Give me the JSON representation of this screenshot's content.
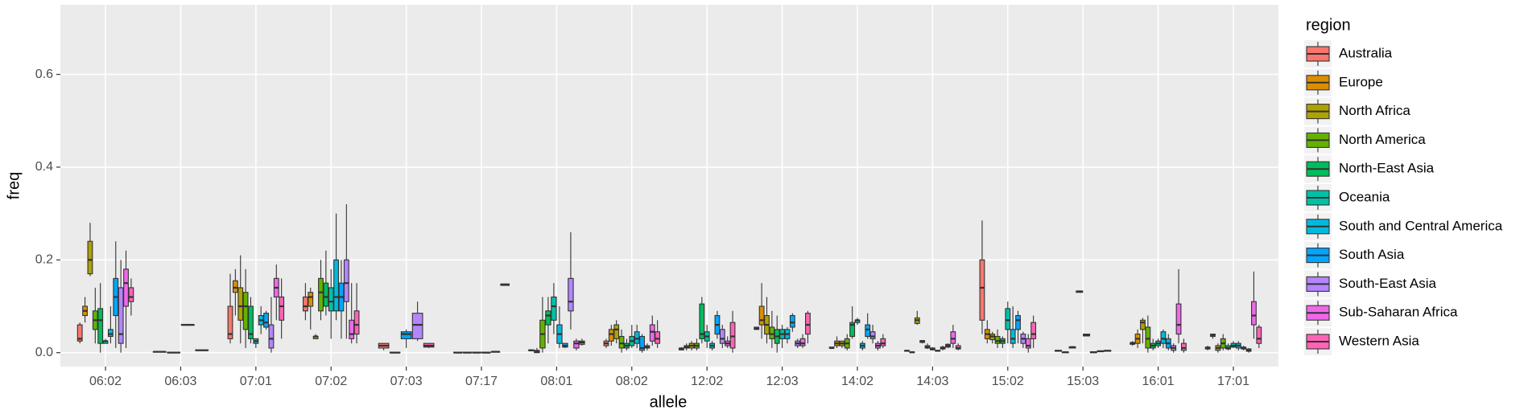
{
  "chart_data": {
    "type": "boxplot",
    "x_label": "allele",
    "y_label": "freq",
    "legend_title": "region",
    "legend_position": "right",
    "grid": true,
    "categories": [
      "06:02",
      "06:03",
      "07:01",
      "07:02",
      "07:03",
      "07:17",
      "08:01",
      "08:02",
      "12:02",
      "12:03",
      "14:02",
      "14:03",
      "15:02",
      "15:03",
      "16:01",
      "17:01"
    ],
    "ylim": [
      -0.03,
      0.75
    ],
    "yticks": [
      {
        "value": 0,
        "label": "0.0"
      },
      0.2,
      0.4,
      0.6
    ],
    "series": [
      {
        "name": "Australia",
        "color": "#F8766D",
        "values": [
          [
            0.02,
            0.025,
            0.03,
            0.06,
            0.065
          ],
          [
            0.001,
            0.001,
            0.002,
            0.002,
            0.003
          ],
          [
            0.02,
            0.03,
            0.04,
            0.1,
            0.17
          ],
          [
            0.07,
            0.09,
            0.1,
            0.12,
            0.15
          ],
          [
            0.005,
            0.01,
            0.015,
            0.02,
            0.02
          ],
          [
            0,
            0,
            0,
            0.001,
            0.001
          ],
          [
            0.003,
            0.004,
            0.005,
            0.006,
            0.007
          ],
          [
            0.01,
            0.015,
            0.02,
            0.025,
            0.03
          ],
          [
            0.005,
            0.006,
            0.008,
            0.01,
            0.012
          ],
          [
            0.05,
            0.05,
            0.052,
            0.055,
            0.055
          ],
          [
            0.008,
            0.01,
            0.01,
            0.012,
            0.012
          ],
          [
            0.002,
            0.003,
            0.004,
            0.005,
            0.006
          ],
          [
            0.04,
            0.07,
            0.14,
            0.2,
            0.285
          ],
          [
            0.002,
            0.003,
            0.004,
            0.005,
            0.005
          ],
          [
            0.015,
            0.018,
            0.02,
            0.022,
            0.025
          ],
          [
            0.005,
            0.008,
            0.01,
            0.012,
            0.015
          ]
        ]
      },
      {
        "name": "Europe",
        "color": "#DB8E00",
        "values": [
          [
            0.065,
            0.08,
            0.09,
            0.1,
            0.12
          ],
          null,
          [
            0.08,
            0.13,
            0.14,
            0.155,
            0.18
          ],
          [
            0.05,
            0.1,
            0.12,
            0.13,
            0.14
          ],
          null,
          [
            0,
            0,
            0,
            0.001,
            0.001
          ],
          [
            0,
            0,
            0.002,
            0.005,
            0.01
          ],
          [
            0.015,
            0.025,
            0.04,
            0.05,
            0.06
          ],
          [
            0.005,
            0.01,
            0.012,
            0.015,
            0.02
          ],
          [
            0.03,
            0.06,
            0.07,
            0.1,
            0.15
          ],
          [
            0.01,
            0.015,
            0.02,
            0.025,
            0.035
          ],
          [
            0,
            0,
            0.001,
            0.002,
            0.003
          ],
          [
            0.02,
            0.03,
            0.04,
            0.05,
            0.07
          ],
          [
            0,
            0,
            0.001,
            0.001,
            0.002
          ],
          [
            0.01,
            0.02,
            0.03,
            0.04,
            0.05
          ],
          [
            0.03,
            0.035,
            0.038,
            0.04,
            0.04
          ]
        ]
      },
      {
        "name": "North Africa",
        "color": "#AEA200",
        "values": [
          [
            0.165,
            0.17,
            0.2,
            0.24,
            0.28
          ],
          [
            0,
            0,
            0,
            0.001,
            0.001
          ],
          [
            0.02,
            0.07,
            0.1,
            0.14,
            0.21
          ],
          [
            0.03,
            0.03,
            0.035,
            0.035,
            0.04
          ],
          null,
          [
            0,
            0,
            0,
            0.001,
            0.001
          ],
          null,
          [
            0.02,
            0.03,
            0.05,
            0.06,
            0.07
          ],
          [
            0.005,
            0.01,
            0.015,
            0.02,
            0.025
          ],
          [
            0.02,
            0.04,
            0.06,
            0.08,
            0.12
          ],
          [
            0.01,
            0.015,
            0.02,
            0.025,
            0.025
          ],
          [
            0.06,
            0.063,
            0.07,
            0.075,
            0.09
          ],
          [
            0.02,
            0.028,
            0.035,
            0.04,
            0.045
          ],
          [
            0.01,
            0.01,
            0.012,
            0.012,
            0.014
          ],
          [
            0.02,
            0.05,
            0.065,
            0.07,
            0.075
          ],
          [
            0,
            0.005,
            0.01,
            0.015,
            0.02
          ]
        ]
      },
      {
        "name": "North America",
        "color": "#64B200",
        "values": [
          [
            0.02,
            0.05,
            0.07,
            0.09,
            0.14
          ],
          null,
          [
            0.01,
            0.05,
            0.1,
            0.13,
            0.18
          ],
          [
            0.07,
            0.09,
            0.13,
            0.16,
            0.2
          ],
          [
            0,
            0,
            0,
            0.001,
            0.001
          ],
          [
            0,
            0,
            0,
            0.001,
            0.001
          ],
          [
            0,
            0.01,
            0.04,
            0.07,
            0.12
          ],
          [
            0,
            0.01,
            0.02,
            0.035,
            0.05
          ],
          [
            0.005,
            0.01,
            0.015,
            0.02,
            0.03
          ],
          [
            0.01,
            0.03,
            0.04,
            0.055,
            0.09
          ],
          [
            0.005,
            0.01,
            0.02,
            0.03,
            0.04
          ],
          [
            0.02,
            0.022,
            0.025,
            0.026,
            0.027
          ],
          [
            0.01,
            0.02,
            0.025,
            0.035,
            0.05
          ],
          [
            0.13,
            0.13,
            0.132,
            0.133,
            0.134
          ],
          [
            0,
            0.01,
            0.03,
            0.055,
            0.08
          ],
          [
            0.005,
            0.01,
            0.02,
            0.03,
            0.04
          ]
        ]
      },
      {
        "name": "North-East Asia",
        "color": "#00BD5C",
        "values": [
          [
            0,
            0.02,
            0.07,
            0.095,
            0.15
          ],
          null,
          [
            0.02,
            0.03,
            0.04,
            0.1,
            0.12
          ],
          [
            0.08,
            0.1,
            0.12,
            0.15,
            0.22
          ],
          null,
          [
            0.001,
            0.001,
            0.002,
            0.002,
            0.003
          ],
          [
            0.02,
            0.06,
            0.08,
            0.09,
            0.12
          ],
          [
            0.005,
            0.01,
            0.015,
            0.02,
            0.03
          ],
          [
            0.02,
            0.03,
            0.04,
            0.105,
            0.12
          ],
          [
            0,
            0.02,
            0.035,
            0.05,
            0.08
          ],
          [
            0.03,
            0.035,
            0.06,
            0.065,
            0.1
          ],
          [
            0.008,
            0.01,
            0.012,
            0.015,
            0.02
          ],
          [
            0.01,
            0.02,
            0.025,
            0.03,
            0.035
          ],
          [
            0.035,
            0.036,
            0.038,
            0.04,
            0.04
          ],
          [
            0.005,
            0.01,
            0.015,
            0.02,
            0.03
          ],
          [
            0.005,
            0.008,
            0.01,
            0.015,
            0.02
          ]
        ]
      },
      {
        "name": "Oceania",
        "color": "#00C1A7",
        "values": [
          [
            0.02,
            0.02,
            0.025,
            0.025,
            0.03
          ],
          null,
          [
            0.01,
            0.02,
            0.025,
            0.03,
            0.03
          ],
          [
            0.03,
            0.09,
            0.11,
            0.14,
            0.18
          ],
          null,
          null,
          [
            0.04,
            0.07,
            0.1,
            0.12,
            0.15
          ],
          [
            0.01,
            0.015,
            0.025,
            0.035,
            0.06
          ],
          [
            0.01,
            0.025,
            0.035,
            0.045,
            0.06
          ],
          [
            0.01,
            0.03,
            0.04,
            0.05,
            0.06
          ],
          [
            0.06,
            0.065,
            0.07,
            0.07,
            0.075
          ],
          [
            0.005,
            0.006,
            0.008,
            0.01,
            0.012
          ],
          [
            0.02,
            0.05,
            0.07,
            0.095,
            0.11
          ],
          [
            0,
            0,
            0.001,
            0.002,
            0.003
          ],
          [
            0.01,
            0.015,
            0.02,
            0.025,
            0.03
          ],
          [
            0.01,
            0.012,
            0.015,
            0.02,
            0.025
          ]
        ]
      },
      {
        "name": "South and Central America",
        "color": "#00BADE",
        "values": [
          [
            0.02,
            0.035,
            0.04,
            0.05,
            0.1
          ],
          [
            0.058,
            0.059,
            0.06,
            0.061,
            0.062
          ],
          [
            0.04,
            0.06,
            0.07,
            0.08,
            0.1
          ],
          [
            0.07,
            0.09,
            0.12,
            0.2,
            0.3
          ],
          null,
          null,
          [
            0.01,
            0.02,
            0.04,
            0.06,
            0.1
          ],
          [
            0.01,
            0.02,
            0.03,
            0.045,
            0.06
          ],
          [
            0.005,
            0.01,
            0.015,
            0.02,
            0.025
          ],
          [
            0.02,
            0.03,
            0.04,
            0.05,
            0.055
          ],
          [
            0.005,
            0.01,
            0.015,
            0.02,
            0.025
          ],
          [
            0.002,
            0.003,
            0.004,
            0.005,
            0.006
          ],
          [
            0.01,
            0.02,
            0.03,
            0.05,
            0.1
          ],
          [
            0.002,
            0.002,
            0.003,
            0.004,
            0.004
          ],
          [
            0.01,
            0.02,
            0.03,
            0.045,
            0.05
          ],
          [
            0.005,
            0.01,
            0.015,
            0.02,
            0.025
          ]
        ]
      },
      {
        "name": "South Asia",
        "color": "#00A6FF",
        "values": [
          [
            0.01,
            0.08,
            0.12,
            0.16,
            0.24
          ],
          null,
          [
            0.05,
            0.055,
            0.065,
            0.085,
            0.09
          ],
          [
            0.03,
            0.09,
            0.12,
            0.15,
            0.2
          ],
          [
            0.01,
            0.03,
            0.04,
            0.045,
            0.05
          ],
          null,
          [
            0.01,
            0.012,
            0.015,
            0.02,
            0.02
          ],
          [
            0,
            0.005,
            0.01,
            0.035,
            0.04
          ],
          [
            0.03,
            0.04,
            0.06,
            0.08,
            0.09
          ],
          [
            0.045,
            0.055,
            0.065,
            0.08,
            0.085
          ],
          [
            0.03,
            0.035,
            0.05,
            0.06,
            0.085
          ],
          [
            0.005,
            0.008,
            0.01,
            0.012,
            0.015
          ],
          [
            0.02,
            0.05,
            0.07,
            0.08,
            0.09
          ],
          [
            0.003,
            0.003,
            0.004,
            0.005,
            0.005
          ],
          [
            0.005,
            0.01,
            0.02,
            0.03,
            0.04
          ],
          [
            0.005,
            0.008,
            0.01,
            0.012,
            0.015
          ]
        ]
      },
      {
        "name": "South-East Asia",
        "color": "#B385FF",
        "values": [
          [
            0,
            0.02,
            0.04,
            0.14,
            0.2
          ],
          null,
          [
            0,
            0.01,
            0.03,
            0.06,
            0.12
          ],
          [
            0.03,
            0.11,
            0.15,
            0.2,
            0.32
          ],
          [
            0.025,
            0.03,
            0.06,
            0.085,
            0.11
          ],
          null,
          [
            0.05,
            0.09,
            0.11,
            0.16,
            0.26
          ],
          [
            0.005,
            0.01,
            0.012,
            0.015,
            0.02
          ],
          [
            0.01,
            0.02,
            0.03,
            0.05,
            0.06
          ],
          [
            0.01,
            0.015,
            0.02,
            0.025,
            0.03
          ],
          [
            0.02,
            0.03,
            0.035,
            0.045,
            0.06
          ],
          [
            0.01,
            0.012,
            0.015,
            0.018,
            0.02
          ],
          [
            0.01,
            0.02,
            0.03,
            0.04,
            0.045
          ],
          null,
          [
            0,
            0.005,
            0.01,
            0.015,
            0.02
          ],
          [
            0,
            0.003,
            0.005,
            0.008,
            0.01
          ]
        ]
      },
      {
        "name": "Sub-Saharan Africa",
        "color": "#EF67EB",
        "values": [
          [
            0.01,
            0.1,
            0.15,
            0.18,
            0.22
          ],
          [
            0.004,
            0.005,
            0.005,
            0.006,
            0.006
          ],
          [
            0.07,
            0.12,
            0.14,
            0.16,
            0.19
          ],
          [
            0.02,
            0.03,
            0.04,
            0.07,
            0.15
          ],
          null,
          null,
          [
            0.005,
            0.01,
            0.02,
            0.025,
            0.03
          ],
          [
            0.015,
            0.025,
            0.045,
            0.06,
            0.08
          ],
          [
            0.01,
            0.015,
            0.02,
            0.025,
            0.035
          ],
          [
            0.01,
            0.015,
            0.02,
            0.03,
            0.04
          ],
          [
            0.005,
            0.01,
            0.015,
            0.02,
            0.025
          ],
          [
            0.01,
            0.02,
            0.03,
            0.045,
            0.06
          ],
          [
            0,
            0.01,
            0.015,
            0.03,
            0.04
          ],
          null,
          [
            0.02,
            0.04,
            0.06,
            0.105,
            0.18
          ],
          [
            0.03,
            0.06,
            0.08,
            0.11,
            0.175
          ]
        ]
      },
      {
        "name": "Western Asia",
        "color": "#FF63B6",
        "values": [
          [
            0.08,
            0.11,
            0.12,
            0.14,
            0.16
          ],
          null,
          [
            0.03,
            0.07,
            0.1,
            0.12,
            0.16
          ],
          [
            0.02,
            0.04,
            0.06,
            0.09,
            0.15
          ],
          [
            0.01,
            0.012,
            0.015,
            0.02,
            0.02
          ],
          [
            0.145,
            0.145,
            0.147,
            0.148,
            0.148
          ],
          [
            0.015,
            0.018,
            0.022,
            0.025,
            0.03
          ],
          [
            0.01,
            0.02,
            0.03,
            0.045,
            0.07
          ],
          [
            0,
            0.01,
            0.035,
            0.065,
            0.09
          ],
          [
            0.02,
            0.04,
            0.06,
            0.085,
            0.09
          ],
          [
            0.01,
            0.015,
            0.02,
            0.03,
            0.04
          ],
          [
            0.005,
            0.008,
            0.01,
            0.015,
            0.02
          ],
          [
            0.01,
            0.03,
            0.04,
            0.065,
            0.08
          ],
          null,
          [
            0,
            0.005,
            0.01,
            0.02,
            0.03
          ],
          [
            0.01,
            0.02,
            0.03,
            0.055,
            0.06
          ]
        ]
      }
    ]
  }
}
